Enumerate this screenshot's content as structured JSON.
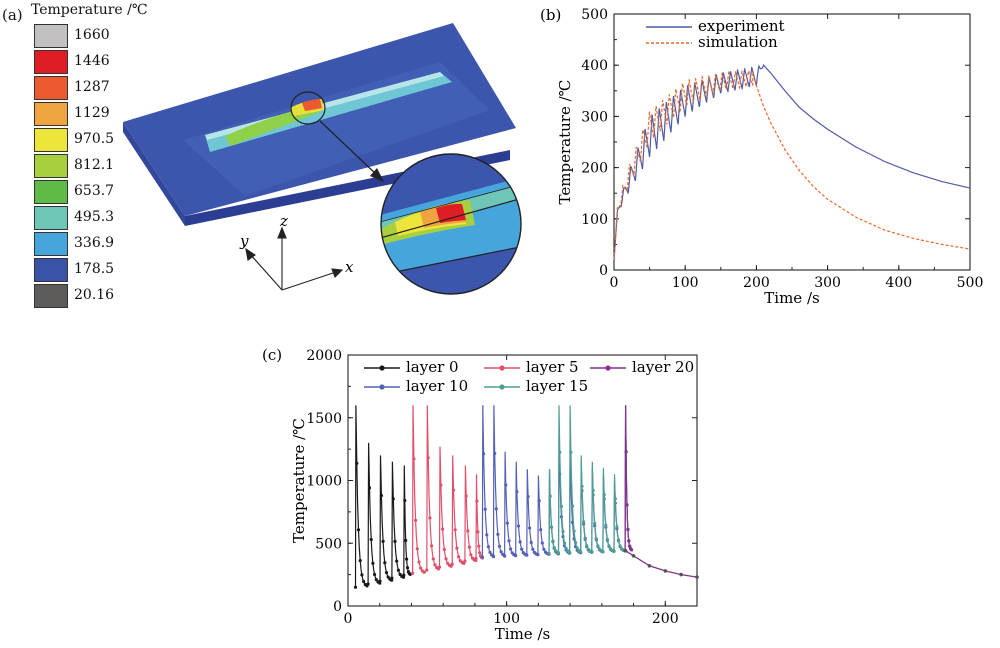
{
  "colors": {
    "experiment": "#4f5aa6",
    "simulation": "#e8682a",
    "layer0": "#1a1a1a",
    "layer5": "#e0506a",
    "layer10": "#5560b8",
    "layer15": "#4e9d92",
    "layer20": "#8a2f8f"
  },
  "panel_a": {
    "label": "(a)",
    "legend_title": "Temperature /℃",
    "colorbar": [
      {
        "value": "1660",
        "color": "#c2c0c0"
      },
      {
        "value": "1446",
        "color": "#e01c24"
      },
      {
        "value": "1287",
        "color": "#ec5a30"
      },
      {
        "value": "1129",
        "color": "#f0a440"
      },
      {
        "value": "970.5",
        "color": "#eee53a"
      },
      {
        "value": "812.1",
        "color": "#a8cf3e"
      },
      {
        "value": "653.7",
        "color": "#5fba47"
      },
      {
        "value": "495.3",
        "color": "#6fc6b6"
      },
      {
        "value": "336.9",
        "color": "#46a6dc"
      },
      {
        "value": "178.5",
        "color": "#3a52a8"
      },
      {
        "value": "20.16",
        "color": "#5e5b5b"
      }
    ],
    "axes": {
      "x": "x",
      "y": "y",
      "z": "z"
    }
  },
  "chart_data": [
    {
      "id": "b",
      "label": "(b)",
      "type": "line",
      "title": "",
      "xlabel": "Time /s",
      "ylabel": "Temperature /℃",
      "xlim": [
        0,
        500
      ],
      "ylim": [
        0,
        500
      ],
      "xticks": [
        0,
        100,
        200,
        300,
        400,
        500
      ],
      "yticks": [
        0,
        100,
        200,
        300,
        400,
        500
      ],
      "legend_position": "top-left",
      "series": [
        {
          "name": "experiment",
          "style": "solid",
          "heating_oscillation": {
            "t_start": 0,
            "t_end": 210,
            "cycles": 21,
            "upper": [
              [
                0,
                20
              ],
              [
                5,
                120
              ],
              [
                20,
                190
              ],
              [
                50,
                300
              ],
              [
                100,
                360
              ],
              [
                150,
                385
              ],
              [
                210,
                400
              ]
            ],
            "lower": [
              [
                0,
                20
              ],
              [
                5,
                110
              ],
              [
                20,
                150
              ],
              [
                50,
                220
              ],
              [
                100,
                300
              ],
              [
                150,
                345
              ],
              [
                200,
                360
              ],
              [
                210,
                400
              ]
            ]
          },
          "cooling": [
            [
              210,
              400
            ],
            [
              220,
              385
            ],
            [
              240,
              350
            ],
            [
              260,
              318
            ],
            [
              280,
              295
            ],
            [
              300,
              275
            ],
            [
              340,
              240
            ],
            [
              380,
              212
            ],
            [
              420,
              190
            ],
            [
              460,
              173
            ],
            [
              500,
              160
            ]
          ]
        },
        {
          "name": "simulation",
          "style": "dashed",
          "heating_oscillation": {
            "t_start": 0,
            "t_end": 195,
            "cycles": 21,
            "upper": [
              [
                0,
                20
              ],
              [
                5,
                130
              ],
              [
                20,
                200
              ],
              [
                50,
                310
              ],
              [
                100,
                370
              ],
              [
                150,
                385
              ],
              [
                195,
                390
              ]
            ],
            "lower": [
              [
                0,
                20
              ],
              [
                5,
                110
              ],
              [
                20,
                160
              ],
              [
                50,
                250
              ],
              [
                100,
                320
              ],
              [
                150,
                350
              ],
              [
                195,
                360
              ]
            ]
          },
          "cooling": [
            [
              195,
              385
            ],
            [
              200,
              360
            ],
            [
              210,
              320
            ],
            [
              220,
              288
            ],
            [
              240,
              235
            ],
            [
              260,
              195
            ],
            [
              280,
              163
            ],
            [
              300,
              138
            ],
            [
              340,
              103
            ],
            [
              380,
              78
            ],
            [
              420,
              62
            ],
            [
              460,
              50
            ],
            [
              500,
              41
            ]
          ]
        }
      ]
    },
    {
      "id": "c",
      "label": "(c)",
      "type": "line",
      "title": "",
      "xlabel": "Time /s",
      "ylabel": "Temperature /℃",
      "xlim": [
        0,
        220
      ],
      "ylim": [
        0,
        2000
      ],
      "xticks": [
        0,
        100,
        200
      ],
      "yticks": [
        0,
        500,
        1000,
        1500,
        2000
      ],
      "legend_position": "top",
      "series": [
        {
          "name": "layer 0",
          "peaks": [
            [
              5,
              1600
            ],
            [
              13,
              1300
            ],
            [
              20.5,
              1200
            ],
            [
              28,
              1150
            ],
            [
              35.5,
              1120
            ]
          ],
          "baseline": [
            [
              5,
              150
            ],
            [
              40,
              260
            ]
          ]
        },
        {
          "name": "layer 5",
          "peaks": [
            [
              41,
              1600
            ],
            [
              50,
              1600
            ],
            [
              58,
              1270
            ],
            [
              66,
              1200
            ],
            [
              74,
              1120
            ],
            [
              81,
              1050
            ]
          ],
          "baseline": [
            [
              41,
              260
            ],
            [
              85,
              390
            ]
          ]
        },
        {
          "name": "layer 10",
          "peaks": [
            [
              85,
              1600
            ],
            [
              92,
              1600
            ],
            [
              99,
              1230
            ],
            [
              106,
              1150
            ],
            [
              113,
              1090
            ],
            [
              120,
              1040
            ],
            [
              127,
              1090
            ],
            [
              133,
              1350
            ],
            [
              140,
              1200
            ],
            [
              147,
              1150
            ],
            [
              154,
              1100
            ],
            [
              161,
              1050
            ],
            [
              168,
              1000
            ],
            [
              175,
              1600
            ]
          ],
          "baseline": [
            [
              85,
              390
            ],
            [
              175,
              440
            ]
          ]
        },
        {
          "name": "layer 15",
          "peaks": [
            [
              127,
              1090
            ],
            [
              133,
              1600
            ],
            [
              140,
              1600
            ],
            [
              147,
              1200
            ],
            [
              154,
              1150
            ],
            [
              161,
              1100
            ],
            [
              168,
              1050
            ],
            [
              175,
              1600
            ]
          ],
          "baseline": [
            [
              127,
              420
            ],
            [
              175,
              440
            ]
          ]
        },
        {
          "name": "layer 20",
          "peaks": [
            [
              175,
              1600
            ]
          ],
          "baseline": [
            [
              175,
              440
            ],
            [
              175,
              440
            ]
          ]
        }
      ],
      "cooling_tail": [
        [
          175,
          440
        ],
        [
          180,
          400
        ],
        [
          190,
          320
        ],
        [
          200,
          280
        ],
        [
          210,
          250
        ],
        [
          220,
          230
        ]
      ]
    }
  ]
}
